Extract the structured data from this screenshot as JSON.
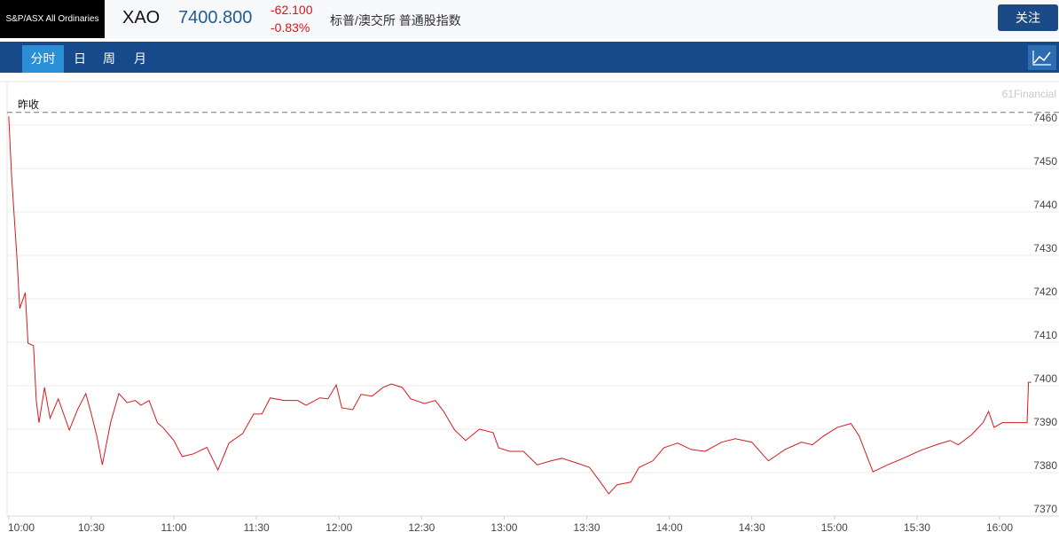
{
  "header": {
    "logo": "S&P/ASX All Ordinaries",
    "symbol": "XAO",
    "price": "7400.800",
    "change": "-62.100",
    "change_pct": "-0.83%",
    "name": "标普/澳交所 普通股指数",
    "button": "关注"
  },
  "tabs": [
    "分时",
    "日",
    "周",
    "月"
  ],
  "chart_data": {
    "type": "line",
    "watermark": "61Financial",
    "reference_line": {
      "label": "昨收",
      "value": 7462.9
    },
    "x": [
      600,
      601,
      603,
      604,
      606,
      607,
      609,
      610,
      611,
      613,
      615,
      618,
      622,
      625,
      628,
      630,
      632,
      634,
      637,
      640,
      643,
      646,
      648,
      651,
      654,
      656,
      660,
      663,
      667,
      672,
      676,
      680,
      685,
      689,
      692,
      695,
      700,
      705,
      708,
      713,
      716,
      719,
      721,
      725,
      728,
      732,
      736,
      739,
      743,
      746,
      751,
      755,
      758,
      762,
      766,
      771,
      776,
      778,
      782,
      787,
      792,
      797,
      801,
      806,
      811,
      815,
      818,
      821,
      826,
      829,
      834,
      838,
      843,
      848,
      853,
      859,
      864,
      870,
      876,
      882,
      888,
      892,
      896,
      901,
      906,
      909,
      914,
      919,
      925,
      932,
      937,
      942,
      945,
      950,
      954,
      956,
      958,
      961,
      970,
      970.5,
      971.5
    ],
    "series": [
      {
        "color": "#d7191c",
        "values": [
          7462.0,
          7448.6,
          7429.2,
          7417.8,
          7421.4,
          7409.8,
          7409.2,
          7396.6,
          7391.5,
          7399.6,
          7392.5,
          7397.0,
          7389.8,
          7394.5,
          7398.2,
          7393.5,
          7388.4,
          7381.8,
          7391.5,
          7398.2,
          7396.1,
          7396.6,
          7395.5,
          7396.6,
          7391.5,
          7390.4,
          7387.4,
          7383.7,
          7384.3,
          7385.8,
          7380.6,
          7386.8,
          7389.0,
          7393.5,
          7393.5,
          7397.2,
          7396.6,
          7396.6,
          7395.5,
          7397.2,
          7397.0,
          7400.2,
          7394.9,
          7394.5,
          7398.0,
          7397.6,
          7399.6,
          7400.4,
          7399.6,
          7397.0,
          7395.9,
          7396.6,
          7394.1,
          7389.8,
          7387.4,
          7390.0,
          7389.2,
          7385.7,
          7384.9,
          7384.9,
          7381.8,
          7382.7,
          7383.3,
          7382.3,
          7381.2,
          7377.8,
          7375.1,
          7377.2,
          7377.8,
          7381.2,
          7382.7,
          7385.7,
          7386.8,
          7385.3,
          7384.9,
          7387.0,
          7387.8,
          7387.0,
          7382.7,
          7385.3,
          7387.0,
          7386.4,
          7388.4,
          7390.4,
          7391.3,
          7388.4,
          7380.2,
          7381.7,
          7383.3,
          7385.3,
          7386.4,
          7387.4,
          7386.4,
          7388.8,
          7391.5,
          7394.1,
          7390.4,
          7391.5,
          7391.5,
          7400.8,
          7400.8
        ]
      }
    ],
    "xlim": [
      599.4,
      971.6
    ],
    "xticks": [
      {
        "value": 600,
        "label": "10:00"
      },
      {
        "value": 630,
        "label": "10:30"
      },
      {
        "value": 660,
        "label": "11:00"
      },
      {
        "value": 690,
        "label": "11:30"
      },
      {
        "value": 720,
        "label": "12:00"
      },
      {
        "value": 750,
        "label": "12:30"
      },
      {
        "value": 780,
        "label": "13:00"
      },
      {
        "value": 810,
        "label": "13:30"
      },
      {
        "value": 840,
        "label": "14:00"
      },
      {
        "value": 870,
        "label": "14:30"
      },
      {
        "value": 900,
        "label": "15:00"
      },
      {
        "value": 930,
        "label": "15:30"
      },
      {
        "value": 960,
        "label": "16:00"
      }
    ],
    "ylim": [
      7370,
      7469.8
    ],
    "yticks": [
      7370,
      7380,
      7390,
      7400,
      7410,
      7420,
      7430,
      7440,
      7450,
      7460
    ],
    "grid": true
  }
}
